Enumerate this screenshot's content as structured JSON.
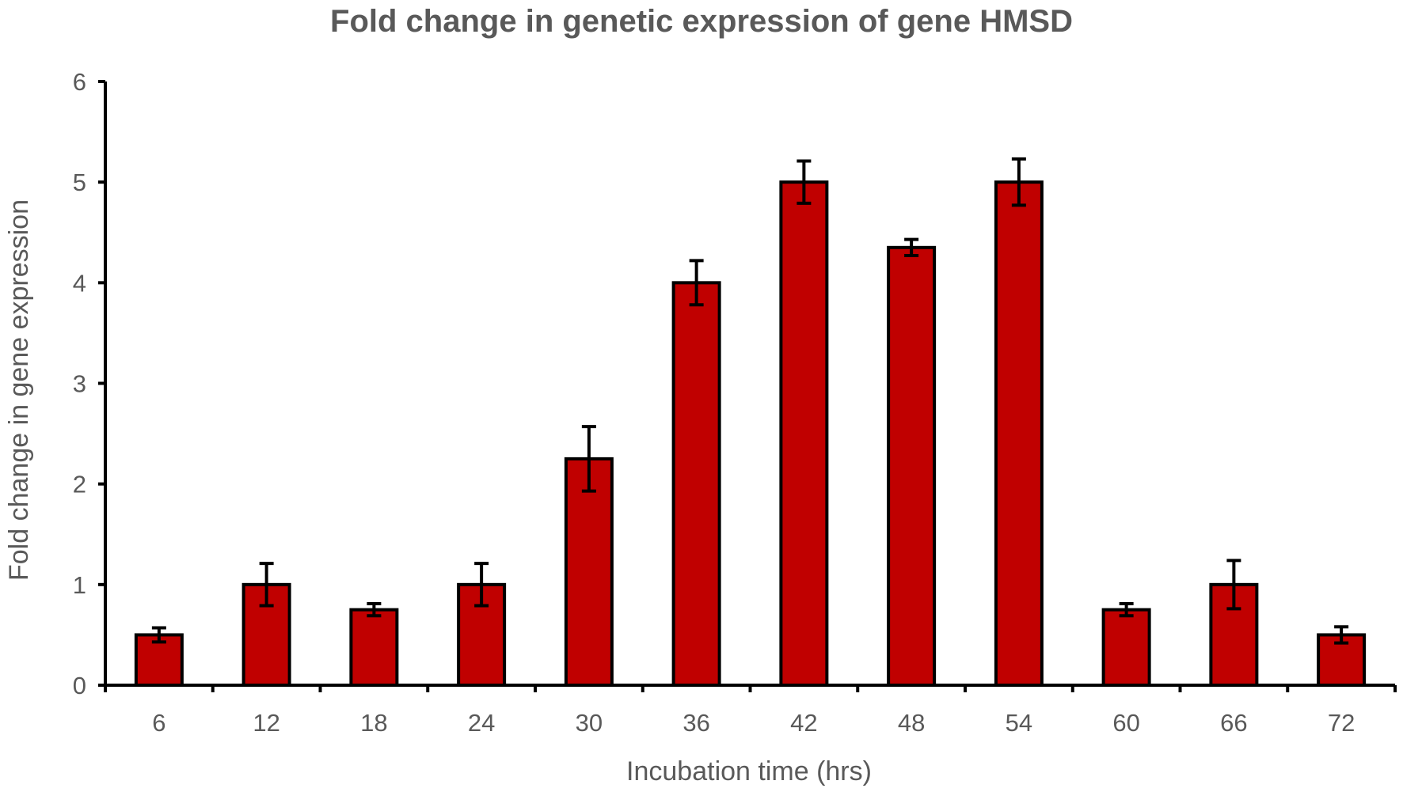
{
  "chart_data": {
    "type": "bar",
    "title": "Fold change in genetic expression of gene HMSD",
    "xlabel": "Incubation time (hrs)",
    "ylabel": "Fold change in gene expression",
    "categories": [
      "6",
      "12",
      "18",
      "24",
      "30",
      "36",
      "42",
      "48",
      "54",
      "60",
      "66",
      "72"
    ],
    "values": [
      0.5,
      1.0,
      0.75,
      1.0,
      2.25,
      4.0,
      5.0,
      4.35,
      5.0,
      0.75,
      1.0,
      0.5
    ],
    "error": [
      0.07,
      0.21,
      0.06,
      0.21,
      0.32,
      0.22,
      0.21,
      0.08,
      0.23,
      0.06,
      0.24,
      0.08
    ],
    "ylim": [
      0,
      6
    ],
    "yticks": [
      "0",
      "1",
      "2",
      "3",
      "4",
      "5",
      "6"
    ],
    "grid": false,
    "legend": "none",
    "colors": {
      "bar": "#c00000",
      "outline": "#000000",
      "text": "#595959"
    }
  }
}
